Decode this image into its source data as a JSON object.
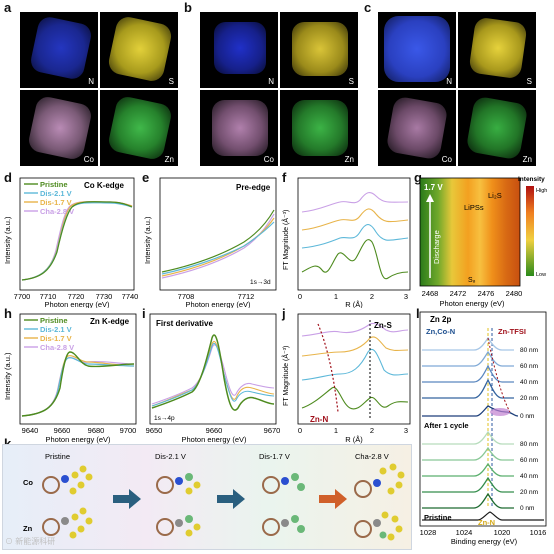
{
  "panel_letters": {
    "a": "a",
    "b": "b",
    "c": "c",
    "d": "d",
    "e": "e",
    "f": "f",
    "g": "g",
    "h": "h",
    "i": "i",
    "j": "j",
    "k": "k",
    "l": "l"
  },
  "maps": {
    "a": [
      "N",
      "S",
      "Co",
      "Zn"
    ],
    "b": [
      "N",
      "S",
      "Co",
      "Zn"
    ],
    "c": [
      "N",
      "S",
      "Co",
      "Zn"
    ]
  },
  "map_colors": {
    "N": "#2a3fd8",
    "S": "#d8cc2a",
    "Co": "#d48ad0",
    "Zn": "#2fae3a"
  },
  "legend": {
    "pristine": "Pristine",
    "dis21": "Dis-2.1 V",
    "dis17": "Dis-1.7 V",
    "cha28": "Cha-2.8 V"
  },
  "series_colors": {
    "pristine": "#4e8b1f",
    "dis21": "#5db8d9",
    "dis17": "#e8b44a",
    "cha28": "#c9a0e6"
  },
  "panel_d": {
    "title": "Co K-edge",
    "xlabel": "Photon energy (eV)",
    "ylabel": "Intensity (a.u.)",
    "ticks": [
      "7700",
      "7710",
      "7720",
      "7730",
      "7740"
    ]
  },
  "panel_e": {
    "title": "Pre-edge",
    "xlabel": "Photon energy (eV)",
    "ylabel": "Intensity (a.u.)",
    "ticks": [
      "7708",
      "7712"
    ],
    "note": "1s→3d"
  },
  "panel_f": {
    "xlabel": "R (Å)",
    "ylabel": "FT Magnitude (Å⁻³)",
    "ticks": [
      "0",
      "1",
      "2",
      "3"
    ]
  },
  "panel_g": {
    "xlabel": "Photon energy (eV)",
    "ticks": [
      "2468",
      "2472",
      "2476",
      "2480"
    ],
    "voltage": "1.7 V",
    "arrow_label": "Discharge",
    "lips": "LiPSs",
    "li2s": "Li₂S",
    "s8": "S₈",
    "colorbar_title": "Intensity",
    "high": "High",
    "low": "Low"
  },
  "panel_h": {
    "title": "Zn K-edge",
    "xlabel": "Photon energy (eV)",
    "ylabel": "Intensity (a.u.)",
    "ticks": [
      "9640",
      "9660",
      "9680",
      "9700"
    ]
  },
  "panel_i": {
    "title": "First derivative",
    "xlabel": "Photon energy (eV)",
    "ticks": [
      "9650",
      "9660",
      "9670"
    ],
    "note": "1s→4p"
  },
  "panel_j": {
    "xlabel": "R (Å)",
    "ylabel": "FT Magnitude (Å⁻³)",
    "ticks": [
      "0",
      "1",
      "2",
      "3"
    ],
    "zns": "Zn-S",
    "znn": "Zn-N"
  },
  "panel_k": {
    "stages": [
      "Pristine",
      "Dis-2.1 V",
      "Dis-1.7 V",
      "Cha-2.8 V"
    ],
    "row_co": "Co",
    "row_zn": "Zn"
  },
  "panel_l": {
    "title": "Zn 2p",
    "peak1": "Zn,Co-N",
    "peak2": "Zn-TFSI",
    "after": "After 1 cycle",
    "pristine": "Pristine",
    "znn": "Zn-N",
    "depths_top": [
      "80 nm",
      "60 nm",
      "40 nm",
      "20 nm",
      "0 nm"
    ],
    "depths_bottom": [
      "80 nm",
      "60 nm",
      "40 nm",
      "20 nm",
      "0 nm"
    ],
    "xlabel": "Binding energy (eV)",
    "ticks": [
      "1028",
      "1024",
      "1020",
      "1016"
    ]
  },
  "watermark": "⊙ 新能源科研"
}
